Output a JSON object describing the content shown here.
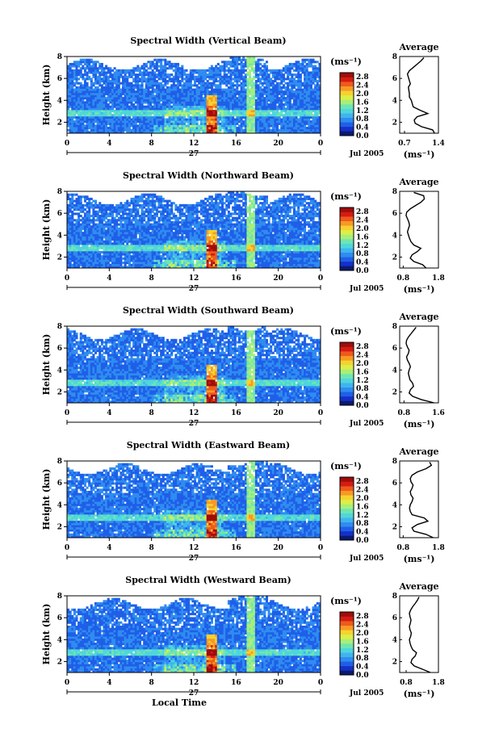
{
  "figure": {
    "xlabel": "Local Time",
    "date_label": "Jul 2005",
    "day_label": "27",
    "ylabel": "Height (km)",
    "colorbar_unit": "(ms⁻¹)",
    "avg_title": "Average",
    "avg_unit": "(ms⁻¹)"
  },
  "colormap": [
    "#0a1a6e",
    "#1530c8",
    "#1f5fe8",
    "#2f8cf0",
    "#3fb4ee",
    "#4fd6dc",
    "#6fe6b0",
    "#a8ef7a",
    "#dcef48",
    "#f6d230",
    "#f79a24",
    "#ef5a1c",
    "#d41c12",
    "#a00c0c"
  ],
  "chart_data": [
    {
      "type": "heatmap",
      "title": "Spectral Width (Vertical Beam)",
      "x_ticks": [
        "0",
        "4",
        "8",
        "12",
        "16",
        "20",
        "0"
      ],
      "y_ticks": [
        "2",
        "4",
        "6",
        "8"
      ],
      "xlim": [
        0,
        24
      ],
      "ylim": [
        1,
        8
      ],
      "colorbar_ticks": [
        "0.0",
        "0.4",
        "0.8",
        "1.2",
        "1.6",
        "2.0",
        "2.4",
        "2.8"
      ],
      "colorbar_range": [
        0.0,
        3.0
      ],
      "average_profile": {
        "x_ticks": [
          "0.7",
          "1.4"
        ],
        "xlim": [
          0.6,
          1.4
        ],
        "ylim": [
          1,
          8
        ],
        "height_km": [
          1.0,
          1.3,
          1.6,
          1.9,
          2.2,
          2.5,
          2.8,
          3.1,
          3.4,
          3.7,
          4.0,
          4.3,
          4.6,
          4.9,
          5.2,
          5.5,
          5.8,
          6.1,
          6.4,
          6.7,
          7.0,
          7.3,
          7.6,
          7.9
        ],
        "width": [
          1.32,
          1.28,
          1.05,
          0.92,
          0.9,
          0.96,
          1.18,
          1.02,
          0.88,
          0.86,
          0.84,
          0.8,
          0.8,
          0.79,
          0.78,
          0.82,
          0.8,
          0.78,
          0.76,
          0.8,
          0.88,
          0.96,
          1.04,
          1.1
        ]
      }
    },
    {
      "type": "heatmap",
      "title": "Spectral Width (Northward Beam)",
      "x_ticks": [
        "0",
        "4",
        "8",
        "12",
        "16",
        "20",
        "0"
      ],
      "y_ticks": [
        "2",
        "4",
        "6",
        "8"
      ],
      "xlim": [
        0,
        24
      ],
      "ylim": [
        1,
        8
      ],
      "colorbar_ticks": [
        "0.0",
        "0.4",
        "0.8",
        "1.2",
        "1.6",
        "2.0",
        "2.4",
        "2.8"
      ],
      "colorbar_range": [
        0.0,
        3.0
      ],
      "average_profile": {
        "x_ticks": [
          "0.8",
          "1.8"
        ],
        "xlim": [
          0.7,
          1.8
        ],
        "ylim": [
          1,
          8
        ],
        "height_km": [
          1.0,
          1.3,
          1.6,
          1.9,
          2.2,
          2.5,
          2.8,
          3.1,
          3.4,
          3.7,
          4.0,
          4.3,
          4.6,
          4.9,
          5.2,
          5.5,
          5.8,
          6.1,
          6.4,
          6.7,
          7.0,
          7.3,
          7.6,
          7.9
        ],
        "width": [
          1.45,
          1.35,
          1.1,
          1.0,
          1.05,
          1.2,
          1.3,
          1.1,
          1.02,
          0.98,
          0.95,
          0.92,
          0.95,
          0.98,
          0.96,
          0.92,
          0.88,
          0.9,
          1.0,
          1.15,
          1.3,
          1.4,
          1.38,
          1.1
        ]
      }
    },
    {
      "type": "heatmap",
      "title": "Spectral Width (Southward Beam)",
      "x_ticks": [
        "0",
        "4",
        "8",
        "12",
        "16",
        "20",
        "0"
      ],
      "y_ticks": [
        "2",
        "4",
        "6",
        "8"
      ],
      "xlim": [
        0,
        24
      ],
      "ylim": [
        1,
        8
      ],
      "colorbar_ticks": [
        "0.0",
        "0.4",
        "0.8",
        "1.2",
        "1.6",
        "2.0",
        "2.4",
        "2.8"
      ],
      "colorbar_range": [
        0.0,
        3.0
      ],
      "average_profile": {
        "x_ticks": [
          "0.8",
          "1.6"
        ],
        "xlim": [
          0.7,
          1.6
        ],
        "ylim": [
          1,
          8
        ],
        "height_km": [
          1.0,
          1.3,
          1.6,
          1.9,
          2.2,
          2.5,
          2.8,
          3.1,
          3.4,
          3.7,
          4.0,
          4.3,
          4.6,
          4.9,
          5.2,
          5.5,
          5.8,
          6.1,
          6.4,
          6.7,
          7.0,
          7.3,
          7.6,
          7.9
        ],
        "width": [
          1.5,
          1.2,
          1.0,
          0.92,
          0.95,
          1.02,
          1.0,
          0.94,
          0.92,
          0.9,
          0.92,
          0.95,
          0.92,
          0.88,
          0.86,
          0.9,
          0.92,
          0.88,
          0.85,
          0.86,
          0.9,
          0.96,
          1.02,
          1.08
        ]
      }
    },
    {
      "type": "heatmap",
      "title": "Spectral Width (Eastward Beam)",
      "x_ticks": [
        "0",
        "4",
        "8",
        "12",
        "16",
        "20",
        "0"
      ],
      "y_ticks": [
        "2",
        "4",
        "6",
        "8"
      ],
      "xlim": [
        0,
        24
      ],
      "ylim": [
        1,
        8
      ],
      "colorbar_ticks": [
        "0.0",
        "0.4",
        "0.8",
        "1.2",
        "1.6",
        "2.0",
        "2.4",
        "2.8"
      ],
      "colorbar_range": [
        0.0,
        3.0
      ],
      "average_profile": {
        "x_ticks": [
          "0.8",
          "1.8"
        ],
        "xlim": [
          0.7,
          1.8
        ],
        "ylim": [
          1,
          8
        ],
        "height_km": [
          1.0,
          1.3,
          1.6,
          1.9,
          2.2,
          2.5,
          2.8,
          3.1,
          3.4,
          3.7,
          4.0,
          4.3,
          4.6,
          4.9,
          5.2,
          5.5,
          5.8,
          6.1,
          6.4,
          6.7,
          7.0,
          7.3,
          7.6,
          7.9
        ],
        "width": [
          1.65,
          1.45,
          1.1,
          1.05,
          1.2,
          1.5,
          1.4,
          1.05,
          1.0,
          0.98,
          1.0,
          1.05,
          1.08,
          1.02,
          1.0,
          1.05,
          1.08,
          1.02,
          1.0,
          1.05,
          1.2,
          1.45,
          1.6,
          1.55
        ]
      }
    },
    {
      "type": "heatmap",
      "title": "Spectral Width (Westward Beam)",
      "x_ticks": [
        "0",
        "4",
        "8",
        "12",
        "16",
        "20",
        "0"
      ],
      "y_ticks": [
        "2",
        "4",
        "6",
        "8"
      ],
      "xlim": [
        0,
        24
      ],
      "ylim": [
        1,
        8
      ],
      "colorbar_ticks": [
        "0.0",
        "0.4",
        "0.8",
        "1.2",
        "1.6",
        "2.0",
        "2.4",
        "2.8"
      ],
      "colorbar_range": [
        0.0,
        3.0
      ],
      "average_profile": {
        "x_ticks": [
          "0.8",
          "1.8"
        ],
        "xlim": [
          0.6,
          1.8
        ],
        "ylim": [
          1,
          8
        ],
        "height_km": [
          1.0,
          1.3,
          1.6,
          1.9,
          2.2,
          2.5,
          2.8,
          3.1,
          3.4,
          3.7,
          4.0,
          4.3,
          4.6,
          4.9,
          5.2,
          5.5,
          5.8,
          6.1,
          6.4,
          6.7,
          7.0,
          7.3,
          7.6,
          7.9
        ],
        "width": [
          1.55,
          1.3,
          1.05,
          0.95,
          0.98,
          1.08,
          1.12,
          1.0,
          0.95,
          0.92,
          0.9,
          0.94,
          0.96,
          0.92,
          0.9,
          0.93,
          0.95,
          0.92,
          0.9,
          0.94,
          1.0,
          1.08,
          1.15,
          1.2
        ]
      }
    }
  ]
}
